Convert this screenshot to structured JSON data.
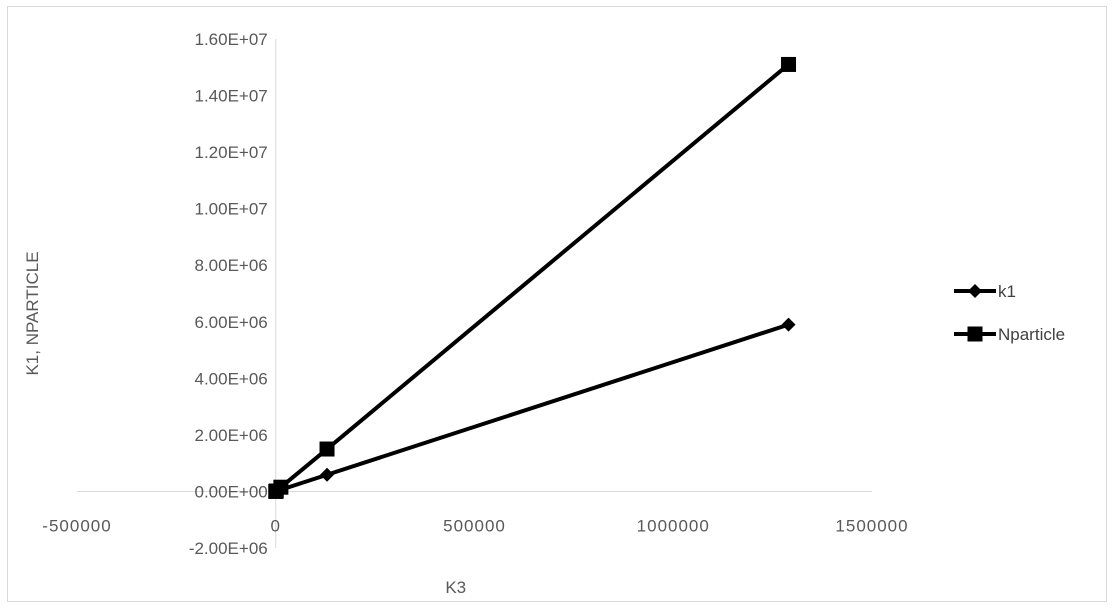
{
  "chart_data": {
    "type": "scatter",
    "title": "",
    "xlabel": "K3",
    "ylabel": "K1, NPARTICLE",
    "xlim": [
      -500000,
      1500000
    ],
    "ylim": [
      -2000000,
      16000000
    ],
    "x_ticks": [
      -500000,
      0,
      500000,
      1000000,
      1500000
    ],
    "x_tick_labels": [
      "-500000",
      "0",
      "500000",
      "1000000",
      "1500000"
    ],
    "y_ticks": [
      -2000000,
      0,
      2000000,
      4000000,
      6000000,
      8000000,
      10000000,
      12000000,
      14000000,
      16000000
    ],
    "y_tick_labels": [
      "-2.00E+06",
      "0.00E+00",
      "2.00E+06",
      "4.00E+06",
      "6.00E+06",
      "8.00E+06",
      "1.00E+07",
      "1.20E+07",
      "1.40E+07",
      "1.60E+07"
    ],
    "grid": false,
    "legend_position": "right",
    "line_color": "#000000",
    "series": [
      {
        "name": "k1",
        "marker": "diamond",
        "x": [
          0,
          1290,
          12900,
          129000,
          1290000
        ],
        "y": [
          0,
          5900,
          59000,
          590000,
          5900000
        ]
      },
      {
        "name": "Nparticle",
        "marker": "square",
        "x": [
          0,
          1290,
          12900,
          129000,
          1290000
        ],
        "y": [
          0,
          15000,
          150000,
          1500000,
          15100000
        ]
      }
    ]
  }
}
